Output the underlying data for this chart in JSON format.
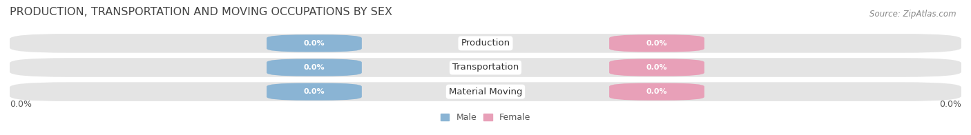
{
  "title": "PRODUCTION, TRANSPORTATION AND MOVING OCCUPATIONS BY SEX",
  "source": "Source: ZipAtlas.com",
  "categories": [
    "Production",
    "Transportation",
    "Material Moving"
  ],
  "male_values": [
    0.0,
    0.0,
    0.0
  ],
  "female_values": [
    0.0,
    0.0,
    0.0
  ],
  "male_color": "#8ab4d4",
  "female_color": "#e8a0b8",
  "male_label": "Male",
  "female_label": "Female",
  "bar_bg_color": "#e4e4e4",
  "xlim_left": "0.0%",
  "xlim_right": "0.0%",
  "title_fontsize": 11.5,
  "source_fontsize": 8.5,
  "label_fontsize": 8,
  "cat_fontsize": 9.5,
  "tick_fontsize": 9,
  "legend_fontsize": 9
}
